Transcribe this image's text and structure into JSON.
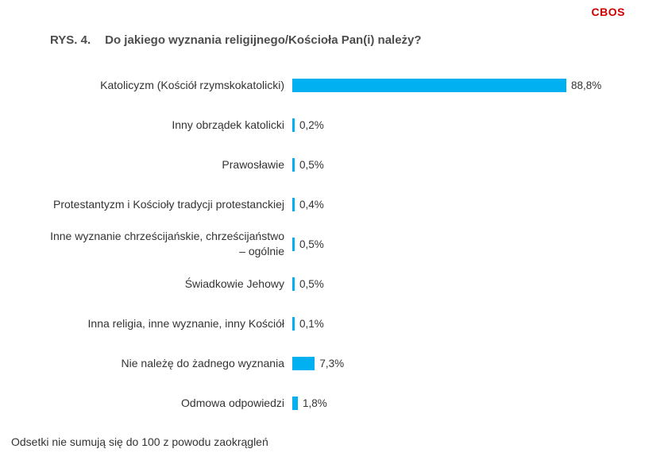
{
  "brand": {
    "logo": "CBOS",
    "color": "#cc0000"
  },
  "title": {
    "prefix": "RYS. 4.",
    "text": "Do jakiego wyznania religijnego/Kościoła Pan(i) należy?"
  },
  "footnote": "Odsetki nie sumują się do 100 z powodu zaokrągleń",
  "chart_data": {
    "type": "bar",
    "orientation": "horizontal",
    "title": "Do jakiego wyznania religijnego/Kościoła Pan(i) należy?",
    "bar_color": "#00b0f0",
    "xlim": [
      0,
      100
    ],
    "grid": false,
    "legend": "none",
    "categories": [
      "Katolicyzm (Kościół rzymskokatolicki)",
      "Inny obrządek katolicki",
      "Prawosławie",
      "Protestantyzm i Kościoły tradycji protestanckiej",
      "Inne wyznanie chrześcijańskie, chrześcijaństwo – ogólnie",
      "Świadkowie Jehowy",
      "Inna religia, inne wyznanie, inny Kościół",
      "Nie należę do żadnego wyznania",
      "Odmowa odpowiedzi"
    ],
    "values": [
      88.8,
      0.2,
      0.5,
      0.4,
      0.5,
      0.5,
      0.1,
      7.3,
      1.8
    ],
    "value_labels": [
      "88,8%",
      "0,2%",
      "0,5%",
      "0,4%",
      "0,5%",
      "0,5%",
      "0,1%",
      "7,3%",
      "1,8%"
    ]
  }
}
